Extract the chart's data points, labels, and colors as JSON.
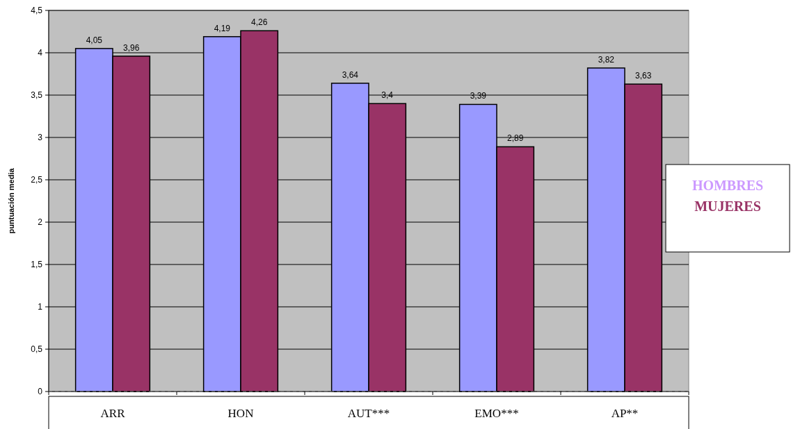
{
  "chart_data": {
    "type": "bar",
    "ylabel": "puntuación media",
    "categories": [
      "ARR",
      "HON",
      "AUT***",
      "EMO***",
      "AP**"
    ],
    "series": [
      {
        "name": "HOMBRES",
        "color": "#9999ff",
        "values": [
          4.05,
          4.19,
          3.64,
          3.39,
          3.82
        ],
        "value_labels": [
          "4,05",
          "4,19",
          "3,64",
          "3,39",
          "3,82"
        ]
      },
      {
        "name": "MUJERES",
        "color": "#993366",
        "values": [
          3.96,
          4.26,
          3.4,
          2.89,
          3.63
        ],
        "value_labels": [
          "3,96",
          "4,26",
          "3,4",
          "2,89",
          "3,63"
        ]
      }
    ],
    "ylim": [
      0,
      4.5
    ],
    "yticks": [
      0,
      {
        "value": 0.5,
        "label": "0,5"
      },
      1,
      {
        "value": 1.5,
        "label": "1,5"
      },
      2,
      {
        "value": 2.5,
        "label": "2,5"
      },
      3,
      {
        "value": 3.5,
        "label": "3,5"
      },
      4,
      {
        "value": 4.5,
        "label": "4,5"
      }
    ],
    "grid": "y",
    "legend": "right"
  }
}
